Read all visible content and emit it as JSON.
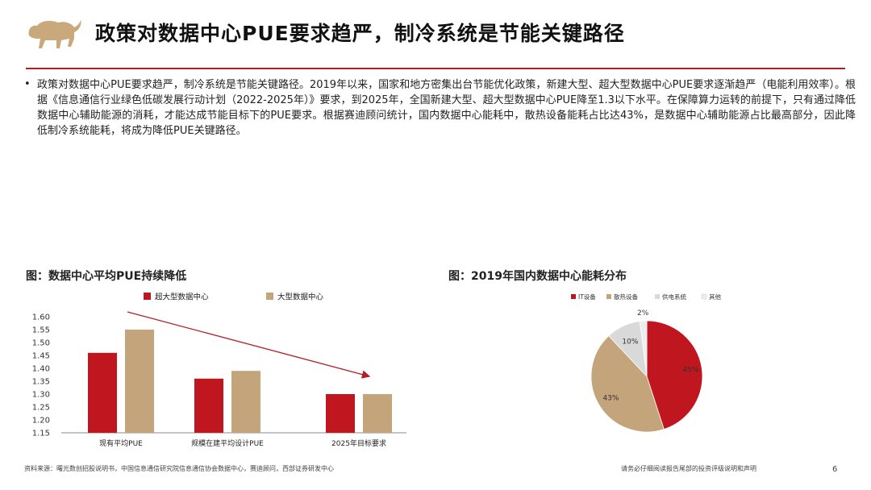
{
  "page": {
    "title": "政策对数据中心PUE要求趋严，制冷系统是节能关键路径",
    "bullet_symbol": "•",
    "bullet_text": "政策对数据中心PUE要求趋严，制冷系统是节能关键路径。2019年以来，国家和地方密集出台节能优化政策，新建大型、超大型数据中心PUE要求逐渐趋严（电能利用效率）。根据《信息通信行业绿色低碳发展行动计划（2022-2025年）》要求，到2025年，全国新建大型、超大型数据中心PUE降至1.3以下水平。在保障算力运转的前提下，只有通过降低数据中心辅助能源的消耗，才能达成节能目标下的PUE要求。根据赛迪顾问统计，国内数据中心能耗中，散热设备能耗占比达43%，是数据中心辅助能源占比最高部分，因此降低制冷系统能耗，将成为降低PUE关键路径。",
    "footer_source": "资料来源：曙光数创招股说明书，中国信息通信研究院信息通信协会数据中心，赛迪顾问，西部证券研发中心",
    "footer_disclaimer": "请务必仔细阅读报告尾部的投资评级说明和声明",
    "page_number": "6"
  },
  "colors": {
    "accent_red": "#b21f25",
    "tan": "#c4a47a",
    "grey": "#d9d9d9",
    "light_grey": "#ededed"
  },
  "chart_data": [
    {
      "type": "bar",
      "caption": "图：数据中心平均PUE持续降低",
      "categories": [
        "现有平均PUE",
        "规模在建平均设计PUE",
        "2025年目标要求"
      ],
      "series": [
        {
          "name": "超大型数据中心",
          "color": "#c0161f",
          "values": [
            1.46,
            1.36,
            1.3
          ]
        },
        {
          "name": "大型数据中心",
          "color": "#c4a47a",
          "values": [
            1.55,
            1.39,
            1.3
          ]
        }
      ],
      "ylim": [
        1.15,
        1.6
      ],
      "yticks": [
        "1.15",
        "1.20",
        "1.25",
        "1.30",
        "1.35",
        "1.40",
        "1.45",
        "1.50",
        "1.55",
        "1.60"
      ],
      "legend_position": "top",
      "annotation": "downward trend arrow",
      "grid": false
    },
    {
      "type": "pie",
      "caption": "图：2019年国内数据中心能耗分布",
      "slices": [
        {
          "name": "IT设备",
          "value": 45,
          "label": "45%",
          "color": "#c0161f"
        },
        {
          "name": "散热设备",
          "value": 43,
          "label": "43%",
          "color": "#c4a47a"
        },
        {
          "name": "供电系统",
          "value": 10,
          "label": "10%",
          "color": "#d9d9d9"
        },
        {
          "name": "其他",
          "value": 2,
          "label": "2%",
          "color": "#ededed"
        }
      ],
      "legend_position": "top"
    }
  ]
}
